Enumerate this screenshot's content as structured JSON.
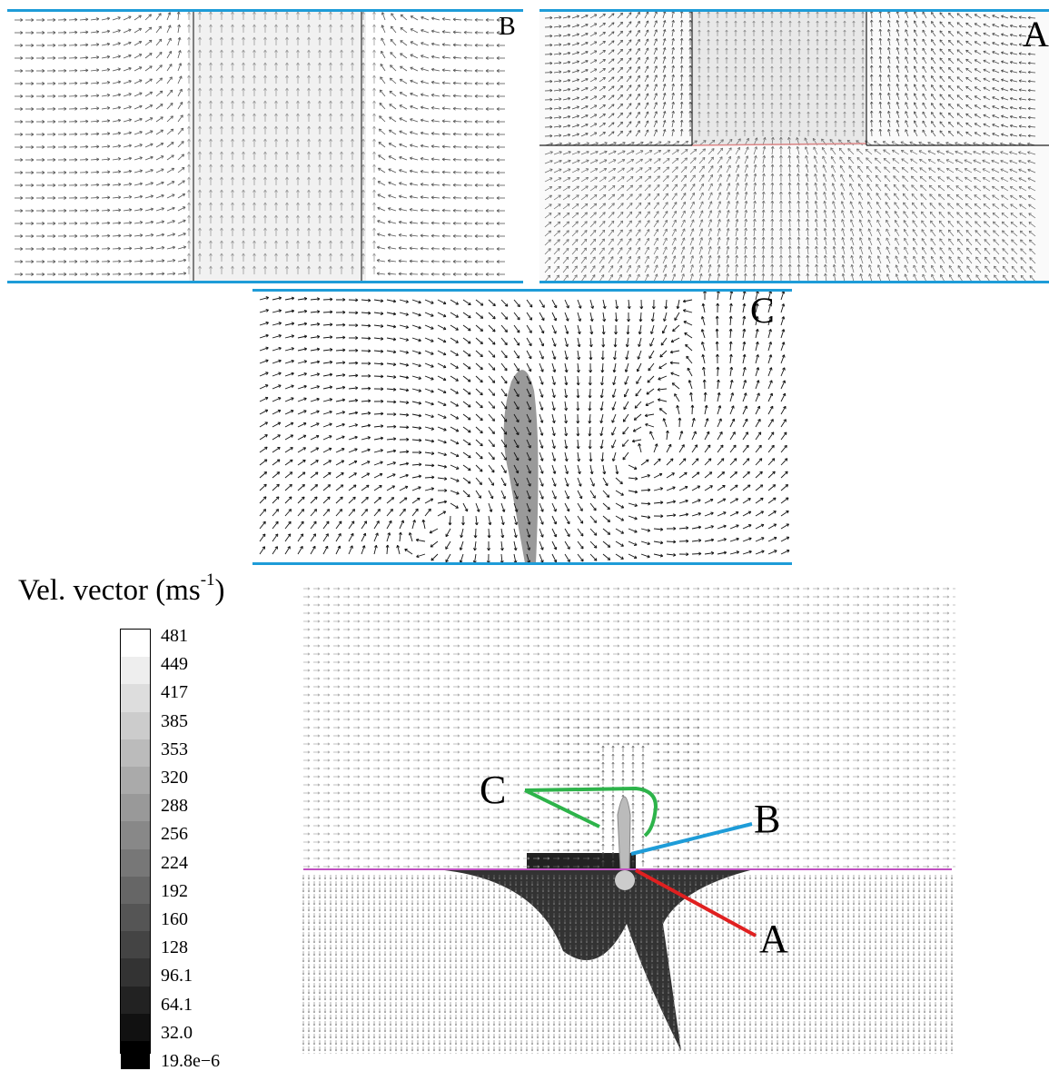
{
  "panels": {
    "B": {
      "label": "B"
    },
    "A": {
      "label": "A"
    },
    "C": {
      "label": "C"
    }
  },
  "legend": {
    "title_main": "Vel. vector (ms",
    "title_exp": "-1",
    "title_close": ")",
    "ticks": [
      "481",
      "449",
      "417",
      "385",
      "353",
      "320",
      "288",
      "256",
      "224",
      "192",
      "160",
      "128",
      "96.1",
      "64.1",
      "32.0",
      "19.8e−6"
    ]
  },
  "main": {
    "label_C": "C",
    "label_B": "B",
    "label_A": "A"
  },
  "colors": {
    "panel_bar": "#1e9cd8",
    "pointer_C": "#2db34a",
    "pointer_B": "#1e9cd8",
    "pointer_A": "#e02020",
    "interface_line": "#c050c0"
  }
}
